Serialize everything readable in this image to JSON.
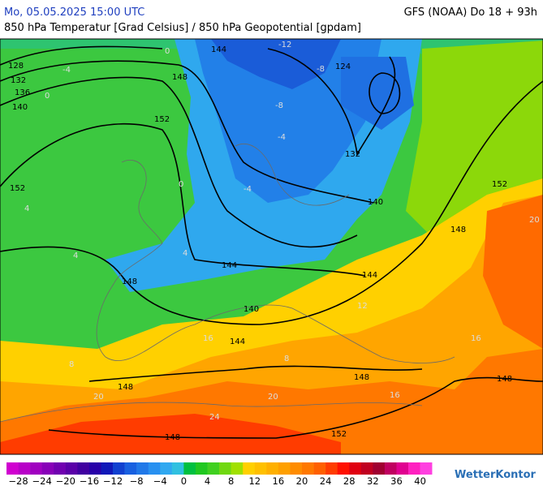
{
  "header": {
    "datetime": "Mo, 05.05.2025 15:00 UTC",
    "model": "GFS (NOAA) Do 18 + 93h",
    "title": "850 hPa Temperatur [Grad Celsius] / 850 hPa Geopotential [gpdam]"
  },
  "map": {
    "contour_labels": [
      "128",
      "132",
      "136",
      "140",
      "144",
      "148",
      "152",
      "124",
      "132",
      "140",
      "152",
      "152",
      "148",
      "144",
      "148",
      "140",
      "144",
      "144",
      "148",
      "148",
      "148",
      "152",
      "148"
    ],
    "temperature_labels": [
      "0",
      "-4",
      "-12",
      "-8",
      "-4",
      "-8",
      "-4",
      "0",
      "0",
      "4",
      "4",
      "4",
      "8",
      "8",
      "12",
      "16",
      "20",
      "20",
      "24",
      "16",
      "16",
      "20"
    ]
  },
  "legend": {
    "colors": [
      "#d000d0",
      "#b800c8",
      "#a000c0",
      "#8800b8",
      "#7000b0",
      "#5a00a8",
      "#4000a0",
      "#2800a8",
      "#1018b8",
      "#1040d0",
      "#1860e0",
      "#2078e8",
      "#2890f0",
      "#30a8f0",
      "#30c0e0",
      "#00c040",
      "#20c820",
      "#40d020",
      "#70d810",
      "#a0e000",
      "#ffd000",
      "#ffc000",
      "#ffb000",
      "#ffa000",
      "#ff8c00",
      "#ff7800",
      "#ff6000",
      "#ff3c00",
      "#ff1000",
      "#e00010",
      "#c00020",
      "#a00030",
      "#c00060",
      "#e00090",
      "#ff20c0",
      "#ff40e0"
    ],
    "labels": [
      "−28",
      "−24",
      "−20",
      "−16",
      "−12",
      "−8",
      "−4",
      "0",
      "4",
      "8",
      "12",
      "16",
      "20",
      "24",
      "28",
      "32",
      "36",
      "40"
    ]
  },
  "brand": "WetterKontor"
}
